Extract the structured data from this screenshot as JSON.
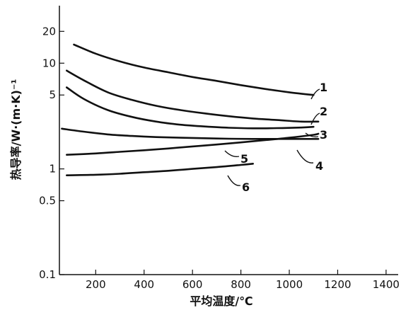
{
  "chart_data": {
    "type": "line",
    "title": "",
    "xlabel": "平均温度/℃",
    "ylabel": "热导率/W·(m·K)⁻¹",
    "xlim": [
      50,
      1450
    ],
    "ylim": [
      0.1,
      35
    ],
    "yscale": "log",
    "xticks": [
      "200",
      "400",
      "600",
      "800",
      "1000",
      "1200",
      "1400"
    ],
    "yticks": [
      "0.1",
      "0.5",
      "1",
      "5",
      "10",
      "20"
    ],
    "grid": false,
    "series": [
      {
        "name": "1",
        "x": [
          110,
          200,
          300,
          400,
          500,
          600,
          700,
          800,
          900,
          1000,
          1100
        ],
        "y": [
          15,
          12.3,
          10.4,
          9.1,
          8.2,
          7.4,
          6.8,
          6.2,
          5.7,
          5.3,
          5.0
        ]
      },
      {
        "name": "2",
        "x": [
          80,
          150,
          250,
          350,
          450,
          550,
          650,
          750,
          850,
          950,
          1050,
          1120
        ],
        "y": [
          8.5,
          6.9,
          5.3,
          4.5,
          3.95,
          3.6,
          3.35,
          3.15,
          3.0,
          2.9,
          2.8,
          2.8
        ]
      },
      {
        "name": "3",
        "x": [
          80,
          150,
          250,
          350,
          450,
          550,
          650,
          750,
          850,
          950,
          1050,
          1100
        ],
        "y": [
          5.9,
          4.6,
          3.6,
          3.1,
          2.8,
          2.62,
          2.52,
          2.45,
          2.42,
          2.43,
          2.46,
          2.5
        ]
      },
      {
        "name": "4",
        "x": [
          60,
          150,
          250,
          350,
          450,
          550,
          650,
          750,
          850,
          950,
          1050,
          1120
        ],
        "y": [
          2.4,
          2.25,
          2.12,
          2.05,
          2.0,
          1.97,
          1.95,
          1.93,
          1.92,
          1.92,
          1.92,
          1.92
        ]
      },
      {
        "name": "5",
        "x": [
          80,
          200,
          300,
          400,
          500,
          600,
          700,
          800,
          900,
          1000,
          1100,
          1120
        ],
        "y": [
          1.36,
          1.4,
          1.45,
          1.5,
          1.56,
          1.63,
          1.7,
          1.78,
          1.87,
          1.97,
          2.1,
          2.15
        ]
      },
      {
        "name": "6",
        "x": [
          80,
          200,
          300,
          400,
          500,
          600,
          700,
          800,
          850
        ],
        "y": [
          0.87,
          0.88,
          0.9,
          0.93,
          0.96,
          1.0,
          1.04,
          1.09,
          1.12
        ]
      }
    ]
  }
}
